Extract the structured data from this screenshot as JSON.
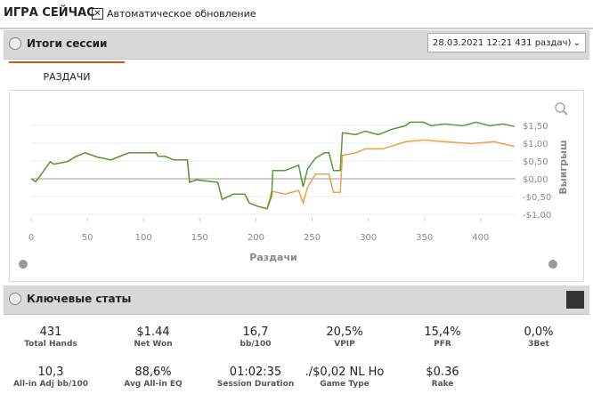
{
  "header": {
    "title": "ИГРА СЕЙЧАС",
    "auto_update": "Автоматическое обновление"
  },
  "session": {
    "title": "Итоги сессии",
    "dropdown": "28.03.2021 12:21 431 раздач)",
    "tab": "РАЗДАЧИ"
  },
  "chart_data": {
    "type": "line",
    "x_label": "Раздачи",
    "y_label": "Выигрыш",
    "xlim": [
      0,
      431
    ],
    "xticks": [
      0,
      50,
      100,
      150,
      200,
      250,
      300,
      350,
      400
    ],
    "ylim": [
      -1.1,
      1.85
    ],
    "yticks": [
      {
        "value": -1,
        "label": "-$1,00"
      },
      {
        "value": -0.5,
        "label": "-$0,50"
      },
      {
        "value": 0,
        "label": "$0,00"
      },
      {
        "value": 0.5,
        "label": "$0,50"
      },
      {
        "value": 1,
        "label": "$1,00"
      },
      {
        "value": 1.5,
        "label": "$1,50"
      }
    ],
    "grid": true,
    "series": [
      {
        "color": "#f0a040",
        "x": [
          0,
          4,
          8,
          17,
          20,
          32,
          40,
          48,
          59,
          71,
          87,
          99,
          111,
          113,
          119,
          127,
          139,
          141,
          147,
          166,
          170,
          180,
          190,
          194,
          202,
          210,
          214,
          226,
          238,
          242,
          246,
          253,
          265,
          269,
          275,
          277,
          289,
          297,
          313,
          333,
          349,
          368,
          392,
          412,
          430
        ],
        "values": [
          0,
          -0.08,
          0.08,
          0.48,
          0.41,
          0.48,
          0.63,
          0.73,
          0.61,
          0.53,
          0.73,
          0.73,
          0.73,
          0.63,
          0.63,
          0.53,
          0.53,
          -0.1,
          -0.03,
          -0.1,
          -0.58,
          -0.43,
          -0.43,
          -0.68,
          -0.78,
          -0.84,
          -0.35,
          -0.43,
          -0.33,
          -0.68,
          -0.23,
          0.13,
          0.13,
          -0.38,
          -0.38,
          0.66,
          0.73,
          0.84,
          0.84,
          1.04,
          1.09,
          1.04,
          0.99,
          1.04,
          0.91
        ]
      },
      {
        "color": "#5a9a3a",
        "x": [
          0,
          4,
          8,
          17,
          20,
          32,
          40,
          48,
          59,
          71,
          87,
          99,
          111,
          113,
          119,
          127,
          139,
          141,
          147,
          166,
          170,
          180,
          190,
          194,
          202,
          210,
          214,
          215,
          226,
          238,
          242,
          246,
          253,
          261,
          265,
          269,
          275,
          277,
          289,
          297,
          309,
          321,
          333,
          337,
          349,
          356,
          368,
          384,
          396,
          408,
          420,
          430
        ],
        "values": [
          0,
          -0.08,
          0.08,
          0.48,
          0.41,
          0.48,
          0.63,
          0.73,
          0.61,
          0.53,
          0.73,
          0.73,
          0.73,
          0.63,
          0.63,
          0.53,
          0.53,
          -0.1,
          -0.03,
          -0.1,
          -0.58,
          -0.43,
          -0.43,
          -0.68,
          -0.78,
          -0.84,
          -0.48,
          0.23,
          0.23,
          0.38,
          -0.23,
          0.28,
          0.58,
          0.73,
          0.73,
          0.23,
          0.23,
          1.29,
          1.24,
          1.34,
          1.24,
          1.39,
          1.49,
          1.59,
          1.59,
          1.49,
          1.54,
          1.49,
          1.59,
          1.49,
          1.54,
          1.47
        ]
      }
    ]
  },
  "key_stats": {
    "title": "Ключевые статы",
    "items": [
      {
        "value": "431",
        "label": "Total Hands"
      },
      {
        "value": "$1.44",
        "label": "Net Won"
      },
      {
        "value": "16,7",
        "label": "bb/100"
      },
      {
        "value": "20,5%",
        "label": "VPIP"
      },
      {
        "value": "15,4%",
        "label": "PFR"
      },
      {
        "value": "0,0%",
        "label": "3Bet"
      },
      {
        "value": "10,3",
        "label": "All-in Adj bb/100"
      },
      {
        "value": "88,6%",
        "label": "Avg All-in EQ"
      },
      {
        "value": "01:02:35",
        "label": "Session Duration"
      },
      {
        "value": "./$0,02 NL Ho",
        "label": "Game Type"
      },
      {
        "value": "$0.36",
        "label": "Rake"
      }
    ]
  }
}
